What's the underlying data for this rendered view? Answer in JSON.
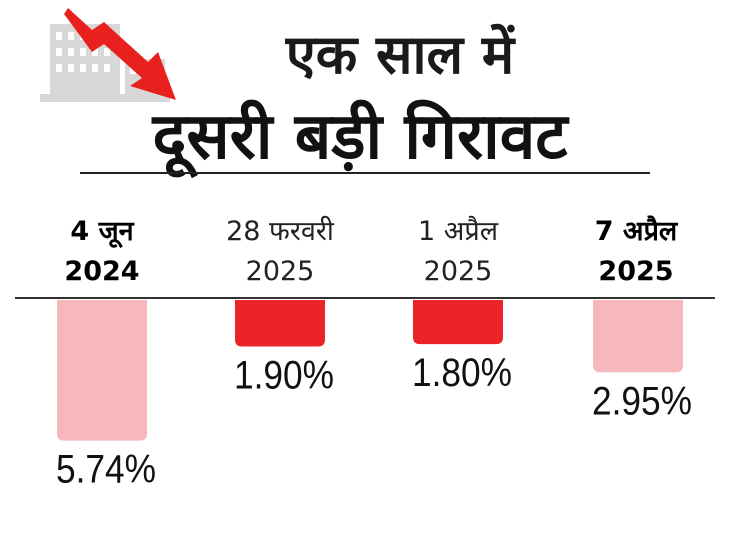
{
  "header": {
    "title_line1": "एक साल में",
    "title_line2": "दूसरी बड़ी गिरावट"
  },
  "colors": {
    "bar_strong": "#ec2427",
    "bar_light": "#f6b8bb",
    "arrow": "#e8211f"
  },
  "chart_data": {
    "type": "bar",
    "categories": [
      {
        "line1": "4 जून",
        "line2": "2024",
        "emphasis": true
      },
      {
        "line1": "28 फरवरी",
        "line2": "2025",
        "emphasis": false
      },
      {
        "line1": "1 अप्रैल",
        "line2": "2025",
        "emphasis": false
      },
      {
        "line1": "7 अप्रैल",
        "line2": "2025",
        "emphasis": true
      }
    ],
    "values": [
      5.74,
      1.9,
      1.8,
      2.95
    ],
    "labels": [
      "5.74%",
      "1.90%",
      "1.80%",
      "2.95%"
    ],
    "bar_style": [
      "light",
      "strong",
      "strong",
      "light"
    ],
    "direction": "down",
    "ylim": [
      0,
      6
    ]
  }
}
